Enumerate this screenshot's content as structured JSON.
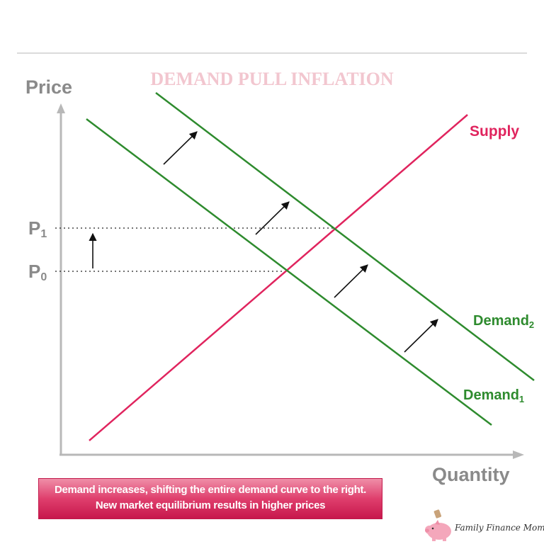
{
  "title": "DEMAND PULL INFLATION",
  "axes": {
    "y_label": "Price",
    "x_label": "Quantity"
  },
  "price_levels": [
    {
      "main": "P",
      "sub": "1"
    },
    {
      "main": "P",
      "sub": "0"
    }
  ],
  "curves": {
    "supply": {
      "label": "Supply",
      "color": "#e0245e"
    },
    "demand_1": {
      "main": "Demand",
      "sub": "1",
      "color": "#2e8b2e"
    },
    "demand_2": {
      "main": "Demand",
      "sub": "2",
      "color": "#2e8b2e"
    }
  },
  "caption": {
    "line1": "Demand increases, shifting the entire demand curve to the right.",
    "line2": "New market equilibrium results in higher prices"
  },
  "brand": {
    "name": "Family Finance Mom",
    "icon": "piggy-bank-icon"
  }
}
